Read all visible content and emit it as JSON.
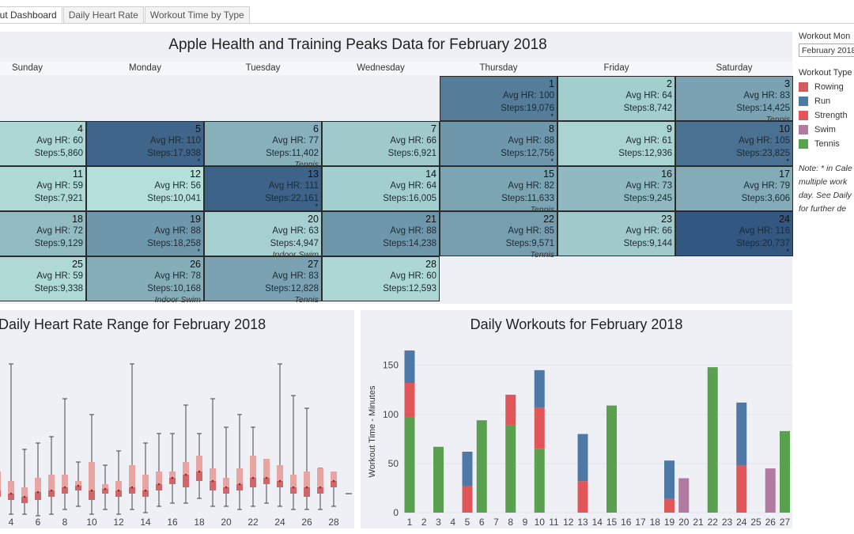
{
  "tabs": [
    "out Dashboard",
    "Daily Heart Rate",
    "Workout Time by Type"
  ],
  "calendar": {
    "title": "Apple Health and Training Peaks Data for February 2018",
    "days": [
      "Sunday",
      "Monday",
      "Tuesday",
      "Wednesday",
      "Thursday",
      "Friday",
      "Saturday"
    ],
    "hr_label": "Avg HR: ",
    "steps_label": "Steps:",
    "entries": [
      {
        "day": "1",
        "hr": "100",
        "steps": "19,076",
        "workout": "",
        "multi": true
      },
      {
        "day": "2",
        "hr": "64",
        "steps": "8,742",
        "workout": "",
        "multi": false
      },
      {
        "day": "3",
        "hr": "83",
        "steps": "14,425",
        "workout": "Tennis",
        "multi": false
      },
      {
        "day": "4",
        "hr": "60",
        "steps": "5,860",
        "workout": "",
        "multi": false
      },
      {
        "day": "5",
        "hr": "110",
        "steps": "17,938",
        "workout": "",
        "multi": true
      },
      {
        "day": "6",
        "hr": "77",
        "steps": "11,402",
        "workout": "Tennis",
        "multi": false
      },
      {
        "day": "7",
        "hr": "66",
        "steps": "6,921",
        "workout": "",
        "multi": false
      },
      {
        "day": "8",
        "hr": "88",
        "steps": "12,756",
        "workout": "",
        "multi": true
      },
      {
        "day": "9",
        "hr": "61",
        "steps": "12,936",
        "workout": "",
        "multi": false
      },
      {
        "day": "10",
        "hr": "105",
        "steps": "23,825",
        "workout": "",
        "multi": true
      },
      {
        "day": "11",
        "hr": "59",
        "steps": "7,921",
        "workout": "",
        "multi": false
      },
      {
        "day": "12",
        "hr": "56",
        "steps": "10,041",
        "workout": "",
        "multi": false
      },
      {
        "day": "13",
        "hr": "111",
        "steps": "22,161",
        "workout": "",
        "multi": true
      },
      {
        "day": "14",
        "hr": "64",
        "steps": "16,005",
        "workout": "",
        "multi": false
      },
      {
        "day": "15",
        "hr": "82",
        "steps": "11,633",
        "workout": "Tennis",
        "multi": false
      },
      {
        "day": "16",
        "hr": "73",
        "steps": "9,245",
        "workout": "",
        "multi": false
      },
      {
        "day": "17",
        "hr": "79",
        "steps": "3,606",
        "workout": "",
        "multi": false
      },
      {
        "day": "18",
        "hr": "72",
        "steps": "9,129",
        "workout": "",
        "multi": false
      },
      {
        "day": "19",
        "hr": "88",
        "steps": "18,258",
        "workout": "",
        "multi": true
      },
      {
        "day": "20",
        "hr": "63",
        "steps": "4,947",
        "workout": "Indoor Swim",
        "multi": false
      },
      {
        "day": "21",
        "hr": "88",
        "steps": "14,238",
        "workout": "",
        "multi": false
      },
      {
        "day": "22",
        "hr": "85",
        "steps": "9,571",
        "workout": "Tennis",
        "multi": false
      },
      {
        "day": "23",
        "hr": "66",
        "steps": "9,144",
        "workout": "",
        "multi": false
      },
      {
        "day": "24",
        "hr": "116",
        "steps": "20,737",
        "workout": "",
        "multi": true
      },
      {
        "day": "25",
        "hr": "59",
        "steps": "9,338",
        "workout": "",
        "multi": false
      },
      {
        "day": "26",
        "hr": "78",
        "steps": "10,168",
        "workout": "Indoor Swim",
        "multi": false
      },
      {
        "day": "27",
        "hr": "83",
        "steps": "12,828",
        "workout": "Tennis",
        "multi": false
      },
      {
        "day": "28",
        "hr": "60",
        "steps": "12,593",
        "workout": "",
        "multi": false
      }
    ]
  },
  "filter": {
    "label": "Workout Mon",
    "value": "February 2018"
  },
  "legend": {
    "label": "Workout Type",
    "items": [
      {
        "name": "Rowing",
        "color": "#d45b5b"
      },
      {
        "name": "Run",
        "color": "#4e79a7"
      },
      {
        "name": "Strength",
        "color": "#e15759"
      },
      {
        "name": "Swim",
        "color": "#b07aa1"
      },
      {
        "name": "Tennis",
        "color": "#59a14f"
      }
    ]
  },
  "note": [
    "Note: * in Cale",
    "multiple work",
    "day. See Daily",
    "for further de"
  ],
  "heart_rate_chart": {
    "title": "Daily Heart Rate Range for February 2018",
    "x_ticks": [
      "4",
      "6",
      "8",
      "10",
      "12",
      "14",
      "16",
      "18",
      "20",
      "22",
      "24",
      "26",
      "28"
    ]
  },
  "workouts_chart": {
    "title": "Daily Workouts for February 2018",
    "y_label": "Workout Time - Minutes",
    "y_ticks": [
      "0",
      "50",
      "100",
      "150"
    ]
  },
  "chart_data": [
    {
      "type": "box",
      "title": "Daily Heart Rate Range for February 2018",
      "categories": [
        "3",
        "4",
        "5",
        "6",
        "7",
        "8",
        "9",
        "10",
        "11",
        "12",
        "13",
        "14",
        "15",
        "16",
        "17",
        "18",
        "19",
        "20",
        "21",
        "22",
        "23",
        "24",
        "25",
        "26",
        "27",
        "28"
      ],
      "low": [
        55,
        55,
        55,
        54,
        55,
        58,
        60,
        55,
        58,
        55,
        58,
        56,
        60,
        62,
        62,
        65,
        60,
        60,
        58,
        60,
        62,
        60,
        58,
        58,
        58,
        60
      ],
      "q1": [
        66,
        64,
        62,
        64,
        66,
        68,
        70,
        64,
        68,
        66,
        68,
        66,
        70,
        74,
        72,
        76,
        70,
        68,
        70,
        72,
        74,
        72,
        68,
        66,
        68,
        72
      ],
      "median": [
        70,
        68,
        66,
        69,
        70,
        72,
        73,
        70,
        71,
        70,
        72,
        70,
        74,
        78,
        80,
        82,
        76,
        72,
        74,
        78,
        78,
        76,
        72,
        72,
        72,
        76
      ],
      "q3": [
        82,
        76,
        72,
        78,
        80,
        80,
        76,
        88,
        74,
        76,
        86,
        80,
        82,
        82,
        88,
        92,
        84,
        78,
        84,
        92,
        90,
        86,
        80,
        82,
        84,
        82
      ],
      "high": [
        90,
        150,
        96,
        100,
        104,
        128,
        88,
        118,
        86,
        95,
        150,
        100,
        106,
        106,
        124,
        106,
        128,
        110,
        118,
        110,
        88,
        150,
        130,
        122,
        84,
        78
      ],
      "ylim": [
        50,
        160
      ]
    },
    {
      "type": "bar",
      "title": "Daily Workouts for February 2018",
      "ylabel": "Workout Time - Minutes",
      "categories": [
        "1",
        "2",
        "3",
        "4",
        "5",
        "6",
        "7",
        "8",
        "9",
        "10",
        "11",
        "12",
        "13",
        "14",
        "15",
        "16",
        "17",
        "18",
        "19",
        "20",
        "21",
        "22",
        "23",
        "24",
        "25",
        "26",
        "27"
      ],
      "ylim": [
        0,
        175
      ],
      "series": [
        {
          "name": "Tennis",
          "color": "#59a14f",
          "values": [
            97,
            0,
            67,
            0,
            0,
            94,
            0,
            89,
            0,
            65,
            0,
            0,
            0,
            0,
            109,
            0,
            0,
            0,
            0,
            0,
            0,
            148,
            0,
            0,
            0,
            0,
            83
          ]
        },
        {
          "name": "Strength",
          "color": "#e15759",
          "values": [
            35,
            0,
            0,
            0,
            27,
            0,
            0,
            31,
            0,
            42,
            0,
            0,
            32,
            0,
            0,
            0,
            0,
            0,
            14,
            0,
            0,
            0,
            0,
            48,
            0,
            0,
            0
          ]
        },
        {
          "name": "Run",
          "color": "#4e79a7",
          "values": [
            33,
            0,
            0,
            0,
            35,
            0,
            0,
            0,
            0,
            38,
            0,
            0,
            48,
            0,
            0,
            0,
            0,
            0,
            39,
            0,
            0,
            0,
            0,
            64,
            0,
            0,
            0
          ]
        },
        {
          "name": "Swim",
          "color": "#b07aa1",
          "values": [
            0,
            0,
            0,
            0,
            0,
            0,
            0,
            0,
            0,
            0,
            0,
            0,
            0,
            0,
            0,
            0,
            0,
            0,
            0,
            35,
            0,
            0,
            0,
            0,
            0,
            45,
            0
          ]
        }
      ]
    }
  ]
}
